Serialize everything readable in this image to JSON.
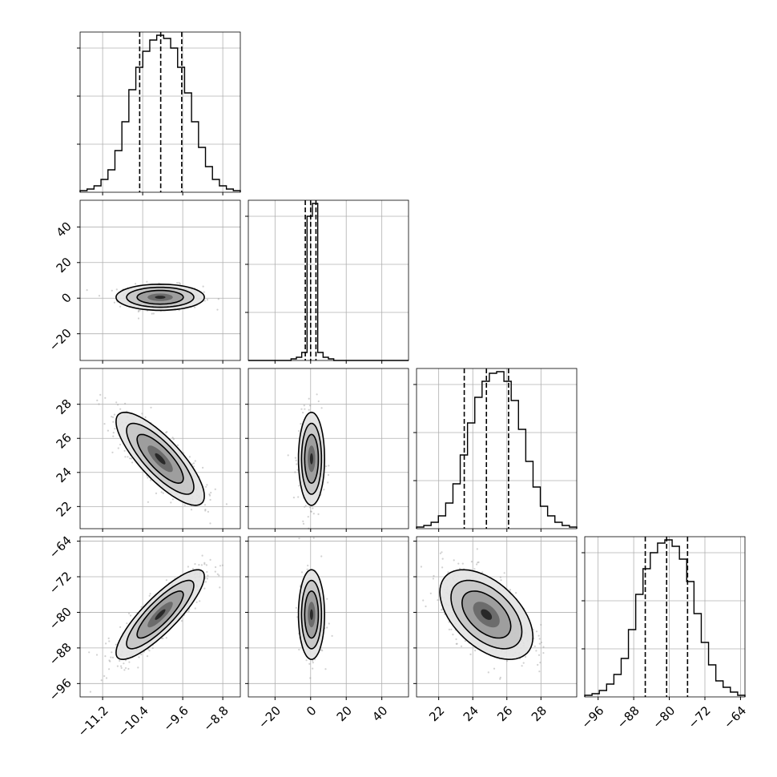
{
  "chart_data": {
    "type": "corner",
    "grid": true,
    "parameters": [
      {
        "ticks": [
          -11.2,
          -10.4,
          -9.6,
          -8.8
        ],
        "tick_labels": [
          "−11.2",
          "−10.4",
          "−9.6",
          "−8.8"
        ],
        "range": [
          -11.65,
          -8.45
        ],
        "quantiles": [
          -10.46,
          -10.04,
          -9.62
        ]
      },
      {
        "ticks": [
          -20,
          0,
          20,
          40
        ],
        "tick_labels": [
          "−20",
          "0",
          "20",
          "40"
        ],
        "range": [
          -35,
          55
        ],
        "quantiles": [
          -3,
          0,
          3
        ]
      },
      {
        "ticks": [
          22,
          24,
          26,
          28
        ],
        "tick_labels": [
          "22",
          "24",
          "26",
          "28"
        ],
        "range": [
          20.7,
          30.1
        ],
        "quantiles": [
          23.5,
          24.8,
          26.1
        ]
      },
      {
        "ticks": [
          -96,
          -88,
          -80,
          -72,
          -64
        ],
        "tick_labels": [
          "−96",
          "−88",
          "−80",
          "−72",
          "−64"
        ],
        "range": [
          -99,
          -63
        ],
        "quantiles": [
          -85.4,
          -80.6,
          -75.9
        ]
      }
    ],
    "histograms": [
      {
        "counts": [
          1,
          2,
          4,
          8,
          14,
          26,
          44,
          64,
          78,
          88,
          95,
          98,
          96,
          90,
          78,
          62,
          44,
          28,
          16,
          8,
          4,
          2,
          1
        ],
        "ylim": [
          0,
          100
        ]
      },
      {
        "counts": [
          0,
          0,
          0,
          0,
          0,
          0,
          0,
          0,
          1,
          2,
          5,
          90,
          98,
          5,
          2,
          1,
          0,
          0,
          0,
          0,
          0,
          0,
          0,
          0,
          0,
          0,
          0,
          0,
          0,
          0
        ],
        "ylim": [
          0,
          100
        ]
      },
      {
        "counts": [
          1,
          2,
          4,
          8,
          16,
          28,
          46,
          66,
          82,
          92,
          97,
          98,
          92,
          80,
          62,
          42,
          26,
          14,
          8,
          4,
          2,
          1
        ],
        "ylim": [
          0,
          100
        ]
      },
      {
        "counts": [
          1,
          2,
          4,
          8,
          14,
          24,
          42,
          64,
          80,
          90,
          96,
          98,
          94,
          86,
          72,
          52,
          34,
          20,
          10,
          6,
          3,
          1
        ],
        "ylim": [
          0,
          100
        ]
      }
    ],
    "correlations": [
      {
        "row": 1,
        "col": 0,
        "center": [
          -10.05,
          0.5
        ],
        "sigma": [
          0.42,
          3.5
        ],
        "rho": 0.0,
        "points": 300
      },
      {
        "row": 2,
        "col": 0,
        "center": [
          -10.05,
          24.8
        ],
        "sigma": [
          0.42,
          1.3
        ],
        "rho": -0.8,
        "points": 700
      },
      {
        "row": 2,
        "col": 1,
        "center": [
          0.5,
          24.8
        ],
        "sigma": [
          3.5,
          1.3
        ],
        "rho": 0.0,
        "points": 300
      },
      {
        "row": 3,
        "col": 0,
        "center": [
          -10.05,
          -80.5
        ],
        "sigma": [
          0.42,
          4.8
        ],
        "rho": 0.85,
        "points": 700
      },
      {
        "row": 3,
        "col": 1,
        "center": [
          0.5,
          -80.5
        ],
        "sigma": [
          3.5,
          4.8
        ],
        "rho": 0.0,
        "points": 300
      },
      {
        "row": 3,
        "col": 2,
        "center": [
          24.8,
          -80.5
        ],
        "sigma": [
          1.3,
          4.8
        ],
        "rho": -0.5,
        "points": 700
      }
    ]
  }
}
